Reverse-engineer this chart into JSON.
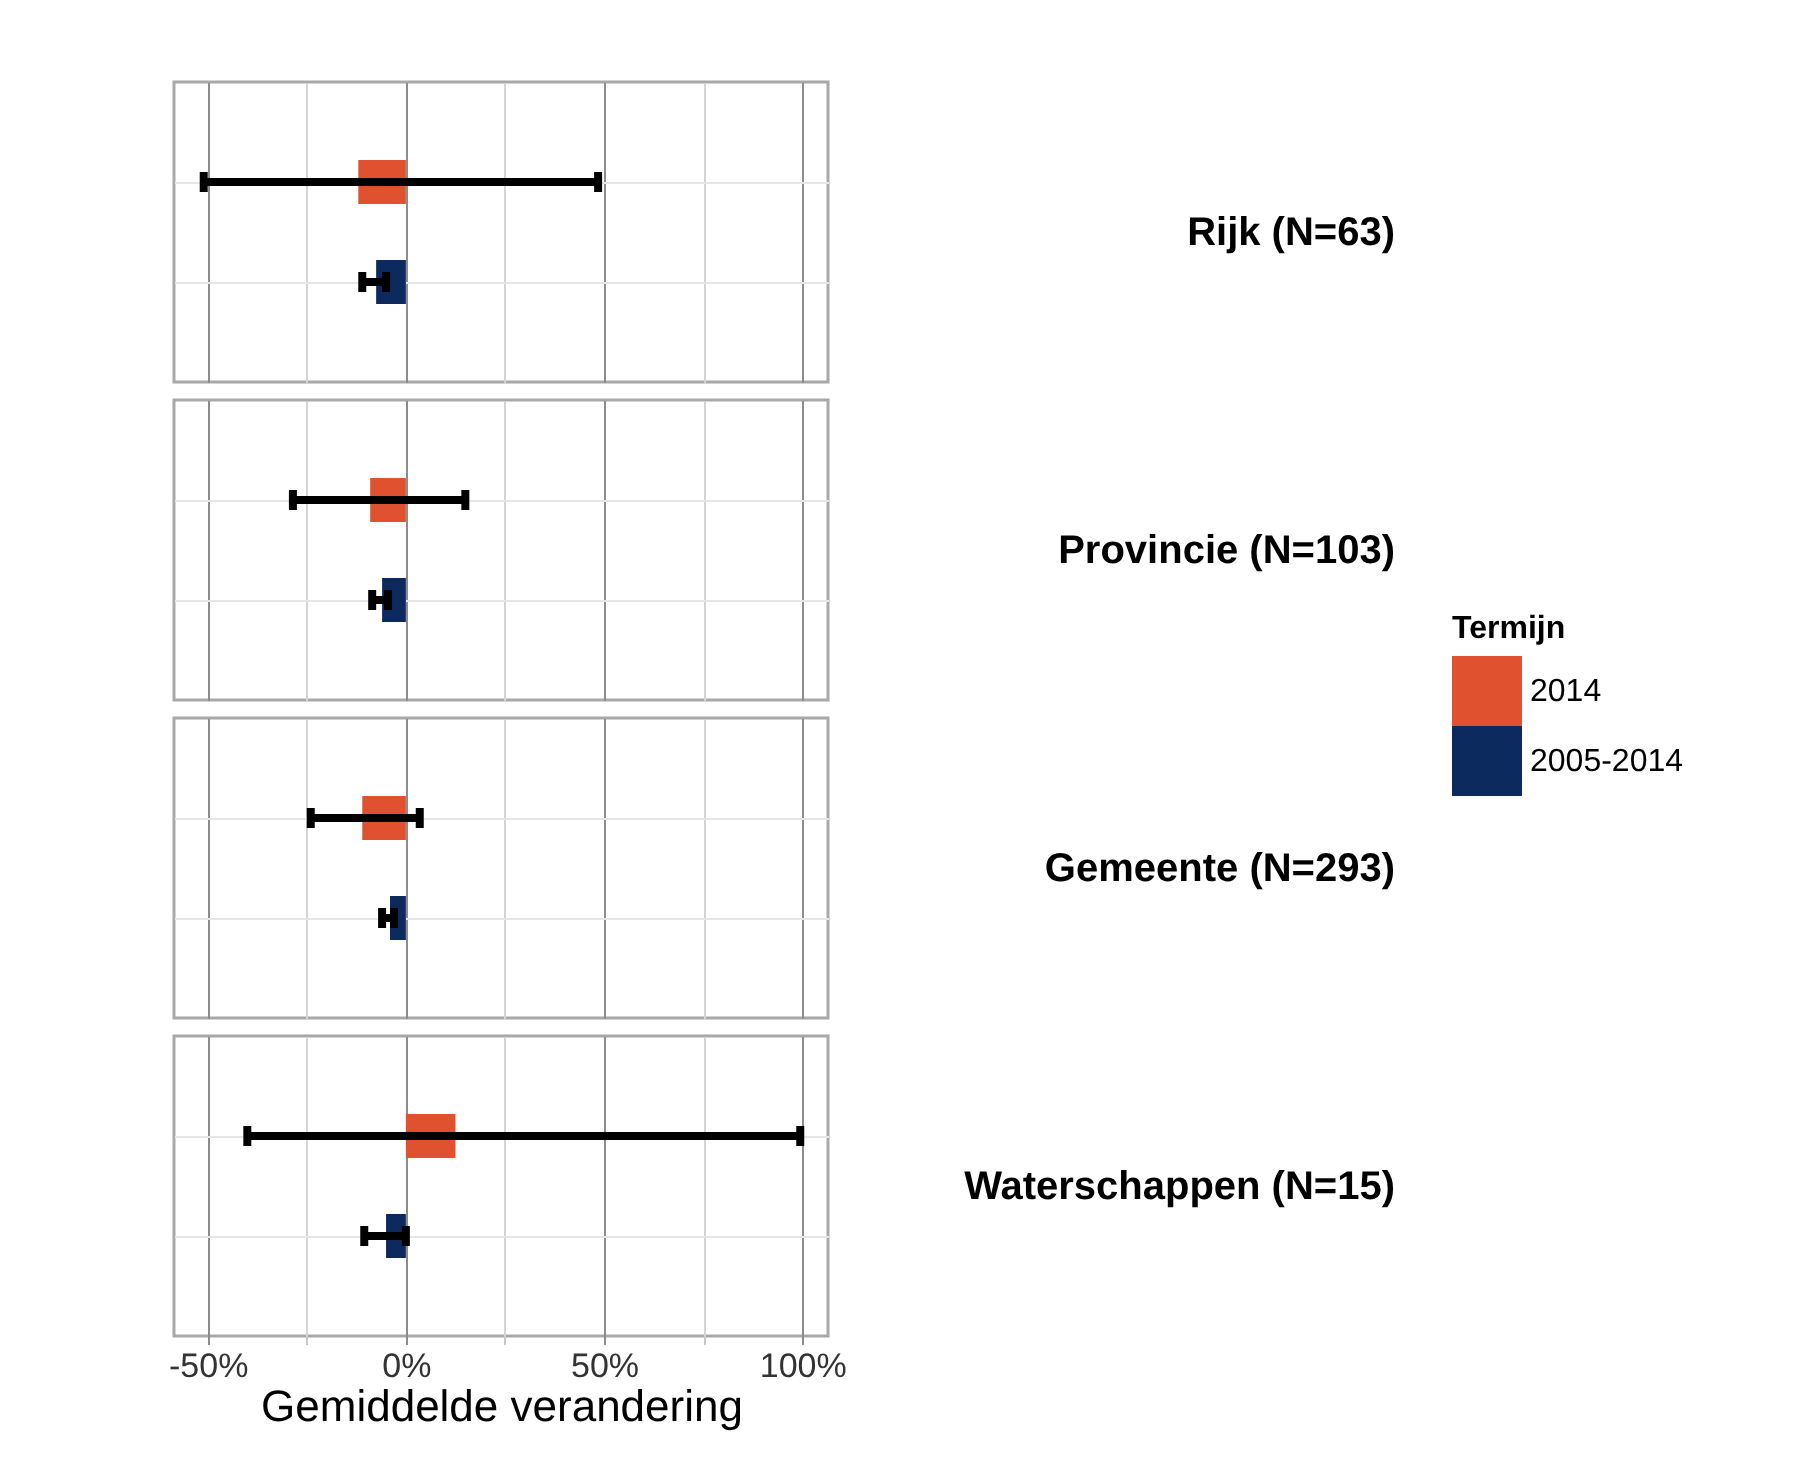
{
  "chart_data": {
    "type": "bar",
    "orientation": "horizontal",
    "xlabel": "Gemiddelde verandering",
    "legend_title": "Termijn",
    "legend": "right",
    "categories": [
      "Rijk (N=63)",
      "Provincie (N=103)",
      "Gemeente (N=293)",
      "Waterschappen (N=15)"
    ],
    "series": [
      {
        "name": "2014",
        "color": "#e0522f",
        "values": [
          -12,
          -9,
          -11,
          12.5
        ],
        "errors": [
          [
            -51,
            48.5
          ],
          [
            -28.5,
            15
          ],
          [
            -24,
            3.5
          ],
          [
            -40,
            99.5
          ]
        ]
      },
      {
        "name": "2005-2014",
        "color": "#0c2a5e",
        "values": [
          -7.5,
          -6,
          -4,
          -5
        ],
        "errors": [
          [
            -11,
            -5
          ],
          [
            -8.5,
            -4.5
          ],
          [
            -6,
            -3
          ],
          [
            -10.5,
            0
          ]
        ]
      }
    ],
    "xlim": [
      -58.5,
      106.5
    ],
    "xticks": [
      {
        "value": -50,
        "label": "-50%"
      },
      {
        "value": -25,
        "label": null
      },
      {
        "value": 0,
        "label": "0%"
      },
      {
        "value": 25,
        "label": null
      },
      {
        "value": 50,
        "label": "50%"
      },
      {
        "value": 75,
        "label": null
      },
      {
        "value": 100,
        "label": "100%"
      }
    ],
    "grid": true
  }
}
